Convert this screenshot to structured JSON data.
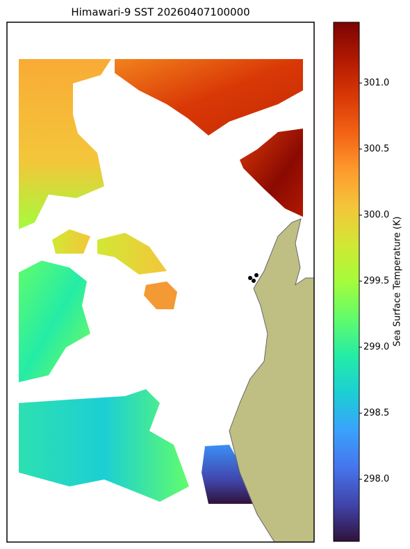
{
  "chart_data": {
    "type": "map",
    "title": "Himawari-9 SST 20260407100000",
    "colorbar_label": "Sea Surface Temperature (K)",
    "clim": [
      297.53,
      301.46
    ],
    "cticks": [
      {
        "value": 298,
        "label": "298.0"
      },
      {
        "value": 298.5,
        "label": "298.5"
      },
      {
        "value": 299,
        "label": "299.0"
      },
      {
        "value": 299.5,
        "label": "299.5"
      },
      {
        "value": 300,
        "label": "300.0"
      },
      {
        "value": 300.5,
        "label": "300.5"
      },
      {
        "value": 301,
        "label": "301.0"
      }
    ],
    "colormap": [
      "#30123b",
      "#4145ab",
      "#4675ed",
      "#39a2fc",
      "#1bcfd4",
      "#24eca6",
      "#61fc6c",
      "#a4fc3b",
      "#d1e834",
      "#f3c63a",
      "#fe9b2d",
      "#f36315",
      "#d93806",
      "#b11901",
      "#7a0403"
    ]
  }
}
